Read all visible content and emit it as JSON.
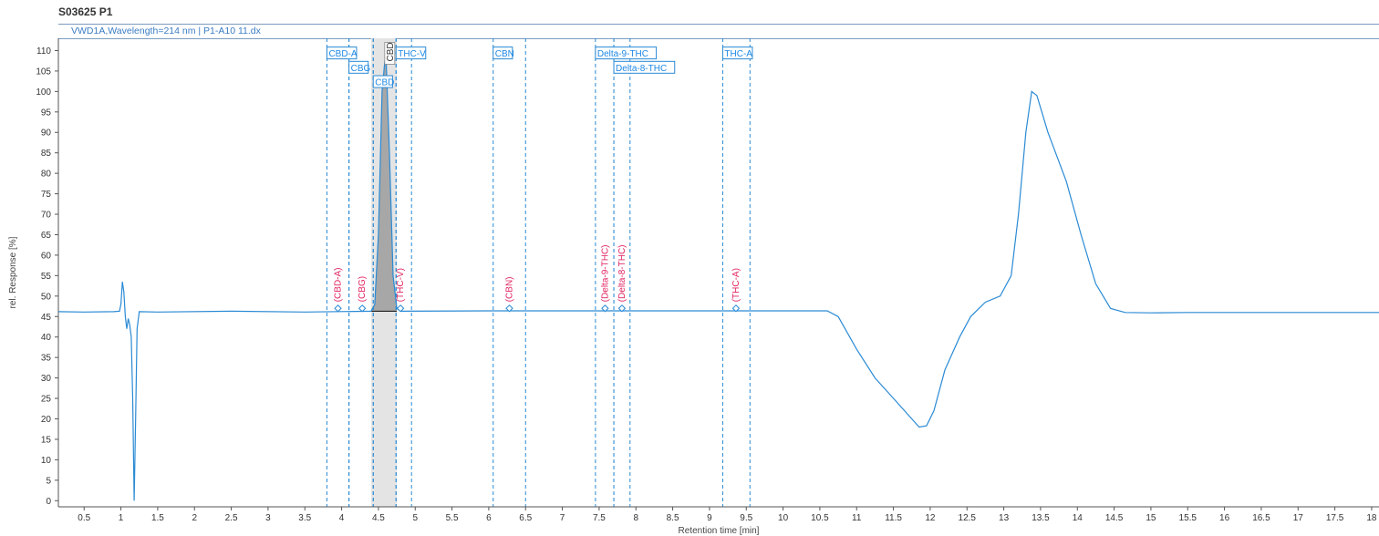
{
  "chart_data": {
    "type": "line",
    "title": "S03625 P1",
    "subtitle": "VWD1A,Wavelength=214 nm | P1-A10 11.dx",
    "xlabel": "Retention time [min]",
    "ylabel": "rel. Response [%]",
    "xlim": [
      0.15,
      18.1
    ],
    "ylim": [
      -1.5,
      113
    ],
    "x_ticks": [
      0.5,
      1,
      1.5,
      2,
      2.5,
      3,
      3.5,
      4,
      4.5,
      5,
      5.5,
      6,
      6.5,
      7,
      7.5,
      8,
      8.5,
      9,
      9.5,
      10,
      10.5,
      11,
      11.5,
      12,
      12.5,
      13,
      13.5,
      14,
      14.5,
      15,
      15.5,
      16,
      16.5,
      17,
      17.5,
      18
    ],
    "y_ticks": [
      0,
      5,
      10,
      15,
      20,
      25,
      30,
      35,
      40,
      45,
      50,
      55,
      60,
      65,
      70,
      75,
      80,
      85,
      90,
      95,
      100,
      105,
      110
    ],
    "series": [
      {
        "color": "#2a8ad4",
        "points": [
          [
            0.15,
            46.2
          ],
          [
            0.5,
            46.1
          ],
          [
            0.9,
            46.2
          ],
          [
            0.98,
            46.3
          ],
          [
            1.0,
            48
          ],
          [
            1.02,
            53.5
          ],
          [
            1.04,
            51
          ],
          [
            1.06,
            45
          ],
          [
            1.08,
            42
          ],
          [
            1.1,
            44.5
          ],
          [
            1.12,
            43
          ],
          [
            1.14,
            40
          ],
          [
            1.16,
            25
          ],
          [
            1.18,
            0
          ],
          [
            1.2,
            20
          ],
          [
            1.22,
            42
          ],
          [
            1.25,
            46.2
          ],
          [
            1.5,
            46.1
          ],
          [
            2.5,
            46.3
          ],
          [
            3.5,
            46.1
          ],
          [
            4.4,
            46.3
          ],
          [
            4.45,
            48
          ],
          [
            4.5,
            65
          ],
          [
            4.55,
            100
          ],
          [
            4.6,
            110
          ],
          [
            4.65,
            85
          ],
          [
            4.7,
            55
          ],
          [
            4.75,
            47
          ],
          [
            4.8,
            46.3
          ],
          [
            6,
            46.4
          ],
          [
            7.5,
            46.4
          ],
          [
            9,
            46.4
          ],
          [
            10.6,
            46.4
          ],
          [
            10.75,
            45
          ],
          [
            11.0,
            37
          ],
          [
            11.25,
            30
          ],
          [
            11.5,
            25
          ],
          [
            11.7,
            21
          ],
          [
            11.85,
            18
          ],
          [
            11.95,
            18.3
          ],
          [
            12.05,
            22
          ],
          [
            12.2,
            32
          ],
          [
            12.4,
            40
          ],
          [
            12.55,
            45
          ],
          [
            12.75,
            48.5
          ],
          [
            12.95,
            50
          ],
          [
            13.1,
            55
          ],
          [
            13.2,
            70
          ],
          [
            13.3,
            90
          ],
          [
            13.38,
            100
          ],
          [
            13.45,
            99
          ],
          [
            13.6,
            90
          ],
          [
            13.85,
            78
          ],
          [
            14.05,
            65
          ],
          [
            14.25,
            53
          ],
          [
            14.45,
            47
          ],
          [
            14.65,
            46
          ],
          [
            15,
            45.9
          ],
          [
            15.5,
            46
          ],
          [
            16.5,
            46
          ],
          [
            17.5,
            46
          ],
          [
            18.1,
            46
          ]
        ]
      }
    ],
    "peak_windows": [
      {
        "label": "CBD-A",
        "left": 3.8,
        "right": 4.1,
        "label_y": 109.3
      },
      {
        "label": "CBG",
        "left": 4.1,
        "right": 4.43,
        "label_y": 105.8
      },
      {
        "label": "CBD",
        "left": 4.43,
        "right": 4.74,
        "label_y": 102.3
      },
      {
        "label": "THC-V",
        "left": 4.74,
        "right": 4.95,
        "label_y": 109.3
      },
      {
        "label": "CBN",
        "left": 6.06,
        "right": 6.5,
        "label_y": 109.3
      },
      {
        "label": "Delta-9-THC",
        "left": 7.45,
        "right": 7.7,
        "label_y": 109.3
      },
      {
        "label": "Delta-8-THC",
        "left": 7.7,
        "right": 7.92,
        "label_y": 105.8
      },
      {
        "label": "THC-A",
        "left": 9.18,
        "right": 9.55,
        "label_y": 109.3
      }
    ],
    "expected_markers": [
      {
        "label": "(CBD-A)",
        "x": 3.95,
        "y": 47
      },
      {
        "label": "(CBG)",
        "x": 4.28,
        "y": 47
      },
      {
        "label": "(THC-V)",
        "x": 4.8,
        "y": 47
      },
      {
        "label": "(CBN)",
        "x": 6.28,
        "y": 47
      },
      {
        "label": "(Delta-9-THC)",
        "x": 7.58,
        "y": 47
      },
      {
        "label": "(Delta-8-THC)",
        "x": 7.81,
        "y": 47
      },
      {
        "label": "(THC-A)",
        "x": 9.36,
        "y": 47
      }
    ],
    "integrated_peak": {
      "label": "CBD",
      "top_label": "CBD",
      "start": 4.4,
      "end": 4.75,
      "baseline": 46.3
    },
    "grid": false
  }
}
